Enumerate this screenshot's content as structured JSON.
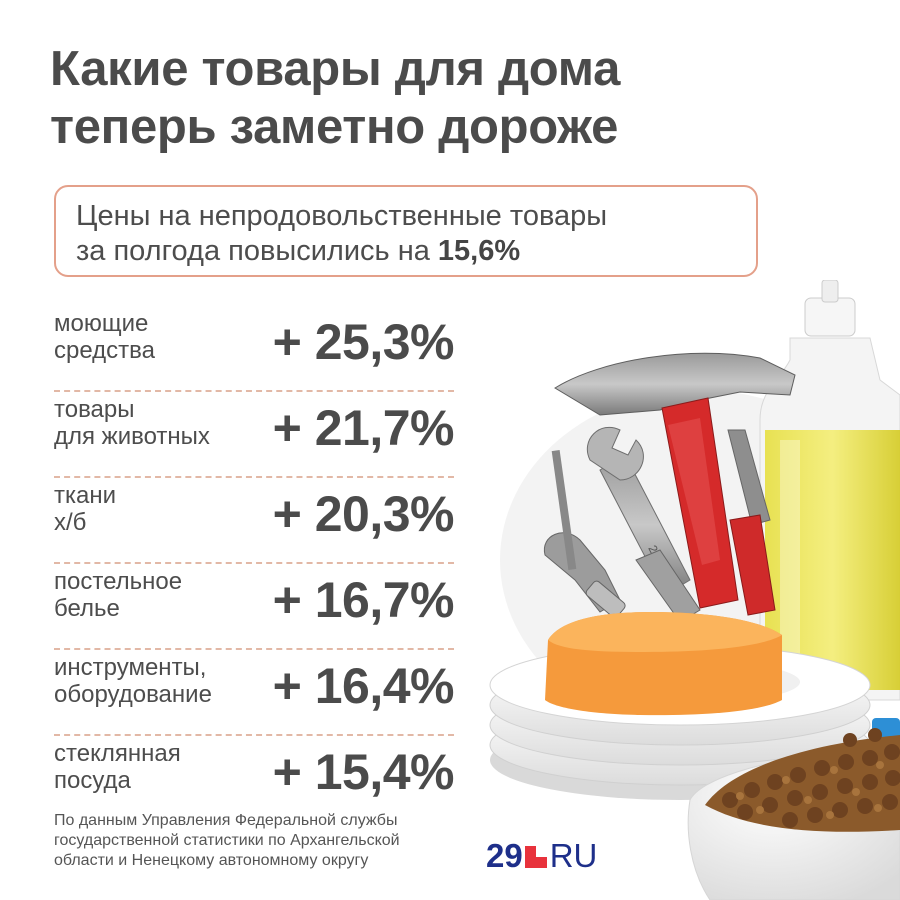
{
  "header": {
    "title_line1": "Какие товары для дома",
    "title_line2": "теперь заметно дороже"
  },
  "subtitle": {
    "line1": "Цены на непродовольственные товары",
    "line2_prefix": "за полгода повысились на ",
    "highlight": "15,6%"
  },
  "stats": [
    {
      "line1": "моющие",
      "line2": "средства",
      "value": "+ 25,3%"
    },
    {
      "line1": "товары",
      "line2": "для животных",
      "value": "+ 21,7%"
    },
    {
      "line1": "ткани",
      "line2": "х/б",
      "value": "+ 20,3%"
    },
    {
      "line1": "постельное",
      "line2": "белье",
      "value": "+ 16,7%"
    },
    {
      "line1": "инструменты,",
      "line2": "оборудование",
      "value": "+ 16,4%"
    },
    {
      "line1": "стеклянная",
      "line2": "посуда",
      "value": "+ 15,4%"
    }
  ],
  "source": {
    "line1": "По данным Управления Федеральной службы",
    "line2": "государственной статистики по Архангельской",
    "line3": "области и Ненецкому автономному округу"
  },
  "logo": {
    "number": "29",
    "suffix": "RU"
  },
  "colors": {
    "accent_border": "#e4a08a",
    "divider": "#e2b8a6",
    "text": "#4b4b4b",
    "logo_blue": "#1e2f8a",
    "logo_red": "#e8323c"
  },
  "illustration": {
    "icons": [
      "hammer-icon",
      "wrench-icon",
      "pliers-icon",
      "detergent-bottle-icon",
      "sponge-icon",
      "plates-icon",
      "pet-food-bowl-icon"
    ]
  }
}
